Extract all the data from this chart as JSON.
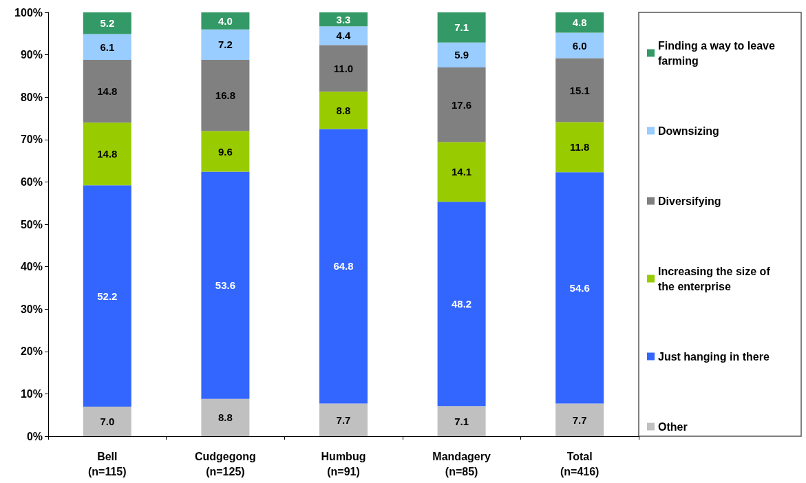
{
  "chart_data": {
    "type": "bar",
    "stacked": true,
    "grid": false,
    "legend": "right",
    "categories": [
      "Bell\n(n=115)",
      "Cudgegong\n(n=125)",
      "Humbug\n(n=91)",
      "Mandagery\n(n=85)",
      "Total\n(n=416)"
    ],
    "ylim": [
      0,
      100
    ],
    "yticks": [
      {
        "value": 0,
        "label": "0%"
      },
      {
        "value": 10,
        "label": "10%"
      },
      {
        "value": 20,
        "label": "20%"
      },
      {
        "value": 30,
        "label": "30%"
      },
      {
        "value": 40,
        "label": "40%"
      },
      {
        "value": 50,
        "label": "50%"
      },
      {
        "value": 60,
        "label": "60%"
      },
      {
        "value": 70,
        "label": "70%"
      },
      {
        "value": 80,
        "label": "80%"
      },
      {
        "value": 90,
        "label": "90%"
      },
      {
        "value": 100,
        "label": "100%"
      }
    ],
    "series": [
      {
        "name": "Other",
        "color": "#c0c0c0",
        "values": [
          7.0,
          8.8,
          7.7,
          7.1,
          7.7
        ],
        "value_labels": [
          "7.0",
          "8.8",
          "7.7",
          "7.1",
          "7.7"
        ]
      },
      {
        "name": "Just hanging in there",
        "color": "#3366ff",
        "values": [
          52.2,
          53.6,
          64.8,
          48.2,
          54.6
        ],
        "value_labels": [
          "52.2",
          "53.6",
          "64.8",
          "48.2",
          "54.6"
        ]
      },
      {
        "name": "Increasing the size of the enterprise",
        "color": "#99cc00",
        "values": [
          14.8,
          9.6,
          8.8,
          14.1,
          11.8
        ],
        "value_labels": [
          "14.8",
          "9.6",
          "8.8",
          "14.1",
          "11.8"
        ]
      },
      {
        "name": "Diversifying",
        "color": "#808080",
        "values": [
          14.8,
          16.8,
          11.0,
          17.6,
          15.1
        ],
        "value_labels": [
          "14.8",
          "16.8",
          "11.0",
          "17.6",
          "15.1"
        ]
      },
      {
        "name": "Downsizing",
        "color": "#99ccff",
        "values": [
          6.1,
          7.2,
          4.4,
          5.9,
          6.0
        ],
        "value_labels": [
          "6.1",
          "7.2",
          "4.4",
          "5.9",
          "6.0"
        ]
      },
      {
        "name": "Finding a way to leave farming",
        "color": "#339966",
        "values": [
          5.2,
          4.0,
          3.3,
          7.1,
          4.8
        ],
        "value_labels": [
          "5.2",
          "4.0",
          "3.3",
          "7.1",
          "4.8"
        ]
      }
    ]
  }
}
